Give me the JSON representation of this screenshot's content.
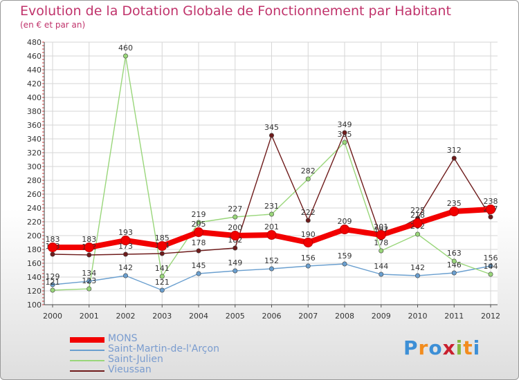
{
  "header": {
    "title": "Evolution de la Dotation Globale de Fonctionnement par Habitant",
    "subtitle": "(en € et par an)"
  },
  "logo": {
    "letters": [
      "P",
      "r",
      "o",
      "x",
      "i",
      "t",
      "i"
    ],
    "colors": [
      "#3d8fd6",
      "#f28c1e",
      "#3d8fd6",
      "#c9202e",
      "#86b83f",
      "#f28c1e",
      "#3d8fd6"
    ]
  },
  "chart_data": {
    "type": "line",
    "title": "Evolution de la Dotation Globale de Fonctionnement par Habitant",
    "ylabel": "(en € et par an)",
    "categories": [
      "2000",
      "2001",
      "2002",
      "2003",
      "2004",
      "2005",
      "2006",
      "2007",
      "2008",
      "2009",
      "2010",
      "2011",
      "2012"
    ],
    "ylim": [
      100,
      480
    ],
    "yticks": [
      100,
      120,
      140,
      160,
      180,
      200,
      220,
      240,
      260,
      280,
      300,
      320,
      340,
      360,
      380,
      400,
      420,
      440,
      460,
      480
    ],
    "series": [
      {
        "name": "MONS",
        "color": "#f20000",
        "values": [
          183,
          183,
          193,
          185,
          205,
          200,
          201,
          190,
          209,
          201,
          218,
          235,
          238
        ]
      },
      {
        "name": "Saint-Martin-de-l'Arçon",
        "color": "#6a9fcf",
        "values": [
          129,
          134,
          142,
          121,
          145,
          149,
          152,
          156,
          159,
          144,
          142,
          146,
          156
        ]
      },
      {
        "name": "Saint-Julien",
        "color": "#99d67a",
        "values": [
          121,
          123,
          460,
          141,
          219,
          227,
          231,
          282,
          335,
          178,
          202,
          163,
          144
        ]
      },
      {
        "name": "Vieussan",
        "color": "#6e1b1b",
        "values": [
          173,
          172,
          173,
          174,
          178,
          182,
          345,
          222,
          349,
          197,
          225,
          312,
          227
        ]
      }
    ]
  }
}
